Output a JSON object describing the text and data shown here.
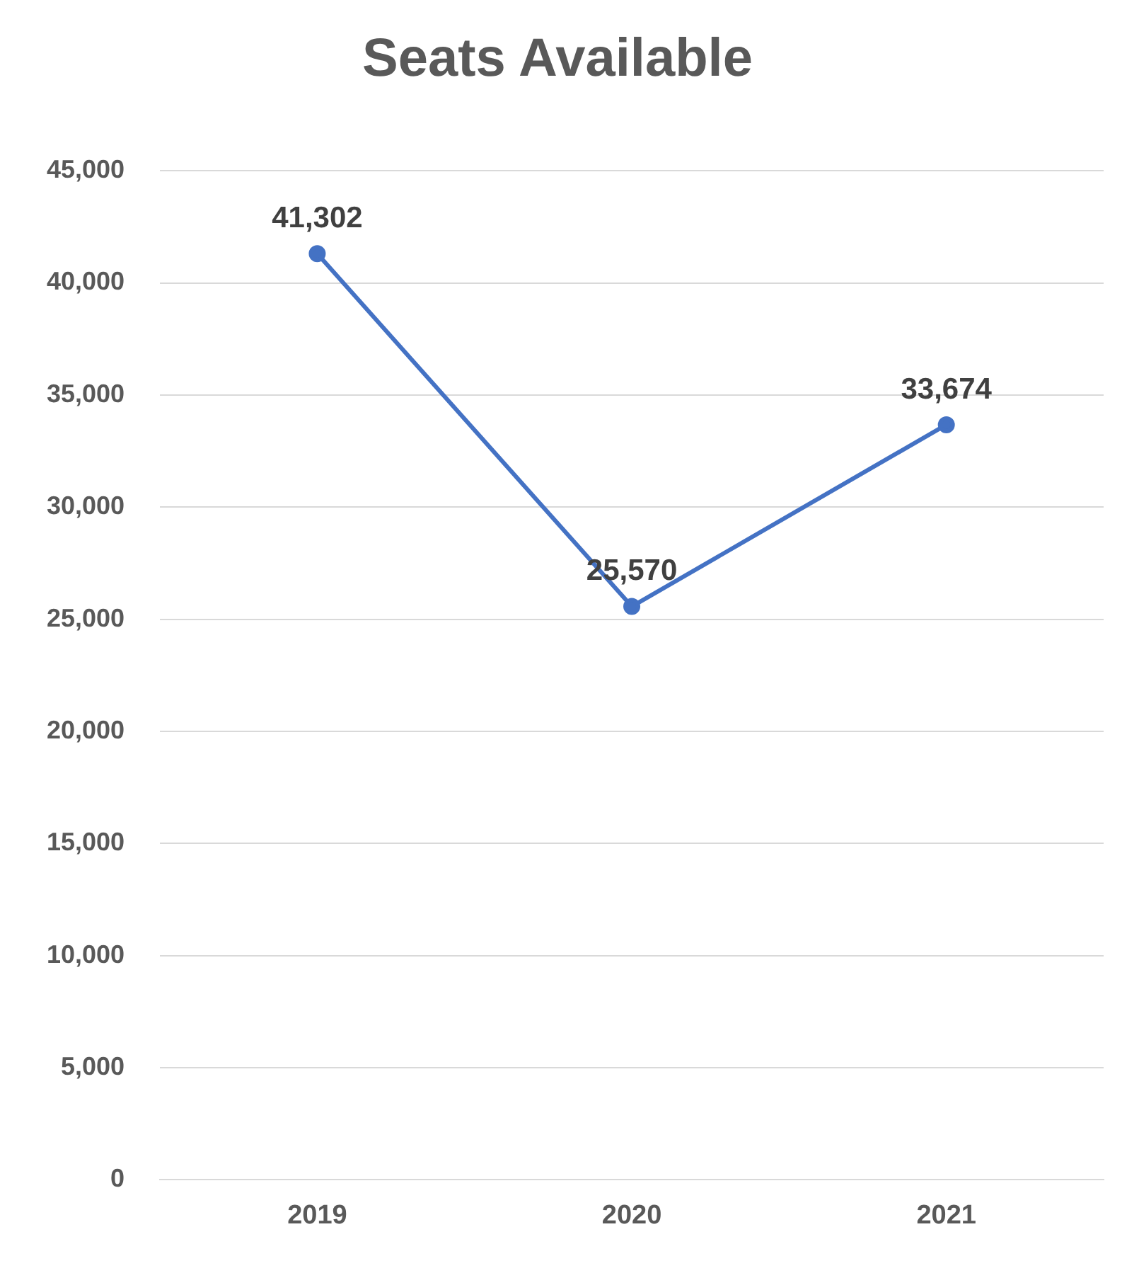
{
  "chart_data": {
    "type": "line",
    "title": "Seats Available",
    "categories": [
      "2019",
      "2020",
      "2021"
    ],
    "series": [
      {
        "color": "#4472c4",
        "values": [
          41302,
          25570,
          33674
        ],
        "value_labels": [
          "41,302",
          "25,570",
          "33,674"
        ]
      }
    ],
    "ylim": [
      0,
      45000
    ],
    "yticks": [
      {
        "value": 0,
        "label": "0"
      },
      {
        "value": 5000,
        "label": "5,000"
      },
      {
        "value": 10000,
        "label": "10,000"
      },
      {
        "value": 15000,
        "label": "15,000"
      },
      {
        "value": 20000,
        "label": "20,000"
      },
      {
        "value": 25000,
        "label": "25,000"
      },
      {
        "value": 30000,
        "label": "30,000"
      },
      {
        "value": 35000,
        "label": "35,000"
      },
      {
        "value": 40000,
        "label": "40,000"
      },
      {
        "value": 45000,
        "label": "45,000"
      }
    ],
    "grid": "y",
    "legend": false,
    "marker": "circle",
    "line_style": "solid"
  }
}
